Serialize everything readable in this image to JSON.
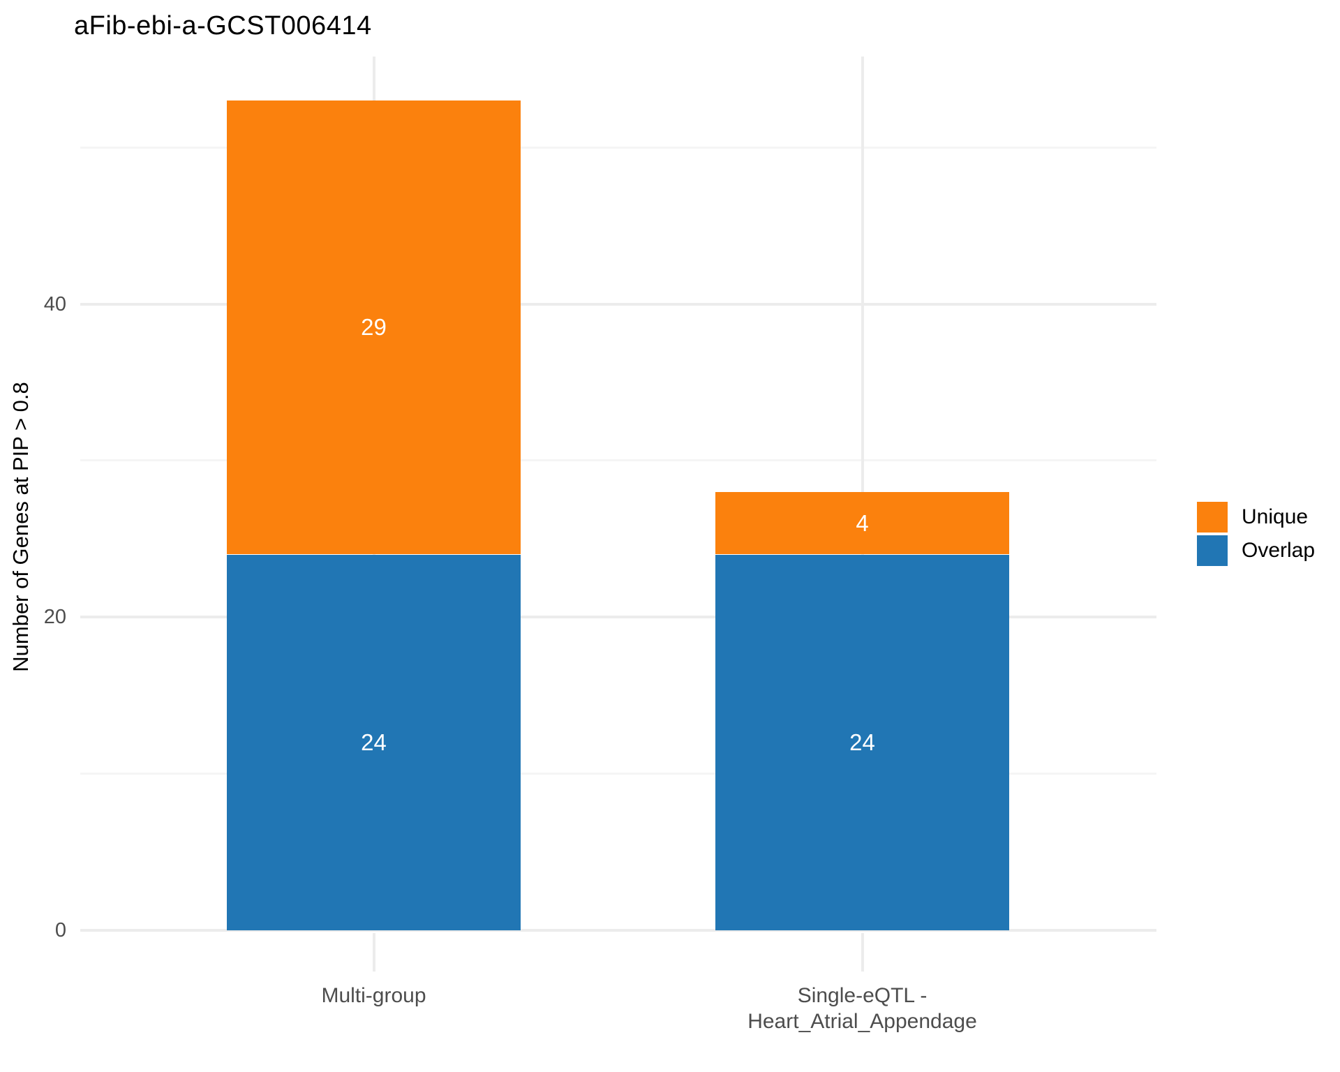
{
  "chart_data": {
    "type": "bar",
    "stacked": true,
    "title": "aFib-ebi-a-GCST006414",
    "xlabel": "",
    "ylabel": "Number of Genes at PIP > 0.8",
    "categories": [
      "Multi-group",
      "Single-eQTL -\nHeart_Atrial_Appendage"
    ],
    "series": [
      {
        "name": "Overlap",
        "color": "#2176b4",
        "values": [
          24,
          24
        ]
      },
      {
        "name": "Unique",
        "color": "#fb810d",
        "values": [
          29,
          4
        ]
      }
    ],
    "totals": [
      53,
      28
    ],
    "bar_value_labels": [
      [
        "24",
        "29"
      ],
      [
        "24",
        "4"
      ]
    ],
    "ylim": [
      0,
      55.8
    ],
    "yticks": [
      0,
      20,
      40
    ],
    "yticks_minor": [
      10,
      30,
      50
    ],
    "grid": "major and minor horizontal, major vertical at categories",
    "legend": {
      "position": "right",
      "entries": [
        {
          "label": "Unique",
          "color": "#fb810d"
        },
        {
          "label": "Overlap",
          "color": "#2176b4"
        }
      ]
    }
  }
}
